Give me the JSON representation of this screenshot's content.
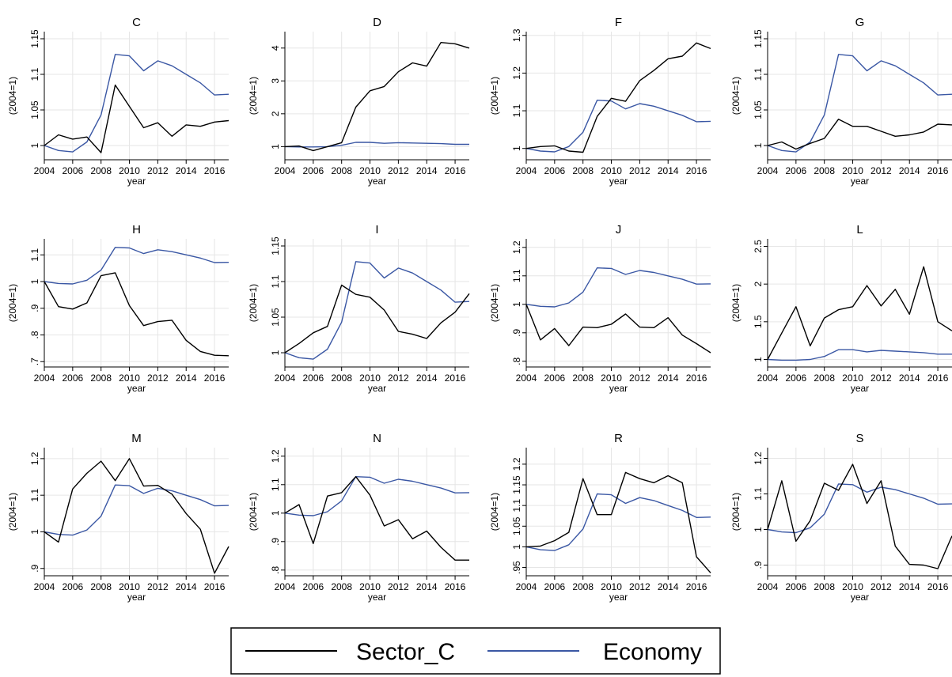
{
  "chart_data": {
    "type": "line",
    "ylabel": "(2004=1)",
    "xlabel": "year",
    "x": [
      2004,
      2005,
      2006,
      2007,
      2008,
      2009,
      2010,
      2011,
      2012,
      2013,
      2014,
      2015,
      2016,
      2017
    ],
    "x_ticks": [
      "2004",
      "2006",
      "2008",
      "2010",
      "2012",
      "2014",
      "2016"
    ],
    "series_styles": [
      {
        "key": "sector",
        "name": "Sector_C",
        "color": "#000000"
      },
      {
        "key": "economy",
        "name": "Economy",
        "color": "#3a57a4"
      }
    ],
    "legend": {
      "placement": "bottom",
      "items": [
        "Sector_C",
        "Economy"
      ]
    },
    "panels": [
      {
        "title": "C",
        "ylim": [
          0.98,
          1.16
        ],
        "yticks": [
          "1",
          "1.05",
          "1.1",
          "1.15"
        ],
        "ytick_values": [
          1,
          1.05,
          1.1,
          1.15
        ],
        "sector": [
          1.0,
          1.015,
          1.009,
          1.012,
          0.99,
          1.085,
          1.055,
          1.025,
          1.032,
          1.013,
          1.029,
          1.027,
          1.033,
          1.035
        ],
        "economy": [
          1.0,
          0.993,
          0.991,
          1.005,
          1.043,
          1.128,
          1.126,
          1.105,
          1.119,
          1.112,
          1.1,
          1.088,
          1.071,
          1.072
        ]
      },
      {
        "title": "D",
        "ylim": [
          0.6,
          4.5
        ],
        "yticks": [
          "1",
          "2",
          "3",
          "4"
        ],
        "ytick_values": [
          1,
          2,
          3,
          4
        ],
        "sector": [
          1.0,
          1.02,
          0.88,
          1.0,
          1.12,
          2.2,
          2.7,
          2.83,
          3.28,
          3.55,
          3.45,
          4.17,
          4.13,
          4.0
        ],
        "economy": [
          1.0,
          0.99,
          0.99,
          1.0,
          1.04,
          1.13,
          1.13,
          1.1,
          1.12,
          1.11,
          1.1,
          1.09,
          1.07,
          1.07
        ]
      },
      {
        "title": "F",
        "ylim": [
          0.97,
          1.31
        ],
        "yticks": [
          "1",
          "1.1",
          "1.2",
          "1.3"
        ],
        "ytick_values": [
          1,
          1.1,
          1.2,
          1.3
        ],
        "sector": [
          1.0,
          1.005,
          1.007,
          0.993,
          0.99,
          1.085,
          1.133,
          1.125,
          1.18,
          1.207,
          1.238,
          1.245,
          1.28,
          1.265
        ],
        "economy": [
          1.0,
          0.993,
          0.991,
          1.005,
          1.043,
          1.128,
          1.126,
          1.105,
          1.119,
          1.112,
          1.1,
          1.088,
          1.071,
          1.072
        ]
      },
      {
        "title": "G",
        "ylim": [
          0.98,
          1.16
        ],
        "yticks": [
          "1",
          "1.05",
          "1.1",
          "1.15"
        ],
        "ytick_values": [
          1,
          1.05,
          1.1,
          1.15
        ],
        "sector": [
          1.0,
          1.005,
          0.995,
          1.003,
          1.01,
          1.037,
          1.027,
          1.027,
          1.02,
          1.013,
          1.015,
          1.019,
          1.03,
          1.029
        ],
        "economy": [
          1.0,
          0.993,
          0.991,
          1.005,
          1.043,
          1.128,
          1.126,
          1.105,
          1.119,
          1.112,
          1.1,
          1.088,
          1.071,
          1.072
        ]
      },
      {
        "title": "H",
        "ylim": [
          0.68,
          1.16
        ],
        "yticks": [
          ".7",
          ".8",
          ".9",
          "1",
          "1.1"
        ],
        "ytick_values": [
          0.7,
          0.8,
          0.9,
          1,
          1.1
        ],
        "sector": [
          1.0,
          0.906,
          0.897,
          0.92,
          1.022,
          1.033,
          0.91,
          0.835,
          0.85,
          0.855,
          0.78,
          0.738,
          0.724,
          0.722
        ],
        "economy": [
          1.0,
          0.993,
          0.991,
          1.005,
          1.043,
          1.128,
          1.126,
          1.105,
          1.119,
          1.112,
          1.1,
          1.088,
          1.071,
          1.072
        ]
      },
      {
        "title": "I",
        "ylim": [
          0.98,
          1.16
        ],
        "yticks": [
          "1",
          "1.05",
          "1.1",
          "1.15"
        ],
        "ytick_values": [
          1,
          1.05,
          1.1,
          1.15
        ],
        "sector": [
          1.0,
          1.013,
          1.028,
          1.037,
          1.095,
          1.082,
          1.078,
          1.06,
          1.03,
          1.026,
          1.02,
          1.042,
          1.057,
          1.083
        ],
        "economy": [
          1.0,
          0.993,
          0.991,
          1.005,
          1.043,
          1.128,
          1.126,
          1.105,
          1.119,
          1.112,
          1.1,
          1.088,
          1.071,
          1.072
        ]
      },
      {
        "title": "J",
        "ylim": [
          0.78,
          1.23
        ],
        "yticks": [
          ".8",
          ".9",
          "1",
          "1.1",
          "1.2"
        ],
        "ytick_values": [
          0.8,
          0.9,
          1,
          1.1,
          1.2
        ],
        "sector": [
          1.0,
          0.875,
          0.915,
          0.855,
          0.92,
          0.918,
          0.93,
          0.966,
          0.92,
          0.918,
          0.953,
          0.892,
          0.862,
          0.83
        ],
        "economy": [
          1.0,
          0.993,
          0.991,
          1.005,
          1.043,
          1.128,
          1.126,
          1.105,
          1.119,
          1.112,
          1.1,
          1.088,
          1.071,
          1.072
        ]
      },
      {
        "title": "L",
        "ylim": [
          0.9,
          2.6
        ],
        "yticks": [
          "1",
          "1.5",
          "2",
          "2.5"
        ],
        "ytick_values": [
          1,
          1.5,
          2,
          2.5
        ],
        "sector": [
          1.0,
          1.35,
          1.7,
          1.18,
          1.55,
          1.66,
          1.7,
          1.98,
          1.71,
          1.93,
          1.6,
          2.23,
          1.5,
          1.38
        ],
        "economy": [
          1.0,
          0.99,
          0.99,
          1.0,
          1.04,
          1.13,
          1.13,
          1.1,
          1.12,
          1.11,
          1.1,
          1.09,
          1.07,
          1.07
        ]
      },
      {
        "title": "M",
        "ylim": [
          0.88,
          1.23
        ],
        "yticks": [
          ".9",
          "1",
          "1.1",
          "1.2"
        ],
        "ytick_values": [
          0.9,
          1,
          1.1,
          1.2
        ],
        "sector": [
          1.0,
          0.972,
          1.117,
          1.16,
          1.193,
          1.14,
          1.2,
          1.125,
          1.127,
          1.103,
          1.05,
          1.007,
          0.887,
          0.96
        ],
        "economy": [
          1.0,
          0.993,
          0.991,
          1.005,
          1.043,
          1.128,
          1.126,
          1.105,
          1.119,
          1.112,
          1.1,
          1.088,
          1.071,
          1.072
        ]
      },
      {
        "title": "N",
        "ylim": [
          0.78,
          1.23
        ],
        "yticks": [
          ".8",
          ".9",
          "1",
          "1.1",
          "1.2"
        ],
        "ytick_values": [
          0.8,
          0.9,
          1,
          1.1,
          1.2
        ],
        "sector": [
          1.0,
          1.03,
          0.893,
          1.06,
          1.072,
          1.128,
          1.063,
          0.955,
          0.977,
          0.91,
          0.937,
          0.88,
          0.835,
          0.835
        ],
        "economy": [
          1.0,
          0.993,
          0.991,
          1.005,
          1.043,
          1.128,
          1.126,
          1.105,
          1.119,
          1.112,
          1.1,
          1.088,
          1.071,
          1.072
        ]
      },
      {
        "title": "R",
        "ylim": [
          0.93,
          1.24
        ],
        "yticks": [
          ".95",
          "1",
          "1.05",
          "1.1",
          "1.15",
          "1.2"
        ],
        "ytick_values": [
          0.95,
          1,
          1.05,
          1.1,
          1.15,
          1.2
        ],
        "sector": [
          1.0,
          1.002,
          1.015,
          1.035,
          1.165,
          1.078,
          1.078,
          1.18,
          1.165,
          1.155,
          1.172,
          1.155,
          0.976,
          0.937
        ],
        "economy": [
          1.0,
          0.993,
          0.991,
          1.005,
          1.043,
          1.128,
          1.126,
          1.105,
          1.119,
          1.112,
          1.1,
          1.088,
          1.071,
          1.072
        ]
      },
      {
        "title": "S",
        "ylim": [
          0.87,
          1.23
        ],
        "yticks": [
          ".9",
          "1",
          "1.1",
          "1.2"
        ],
        "ytick_values": [
          0.9,
          1,
          1.1,
          1.2
        ],
        "sector": [
          1.0,
          1.137,
          0.967,
          1.025,
          1.13,
          1.11,
          1.183,
          1.073,
          1.137,
          0.953,
          0.902,
          0.9,
          0.89,
          0.982
        ],
        "economy": [
          1.0,
          0.993,
          0.991,
          1.005,
          1.043,
          1.128,
          1.126,
          1.105,
          1.119,
          1.112,
          1.1,
          1.088,
          1.071,
          1.072
        ]
      }
    ]
  }
}
